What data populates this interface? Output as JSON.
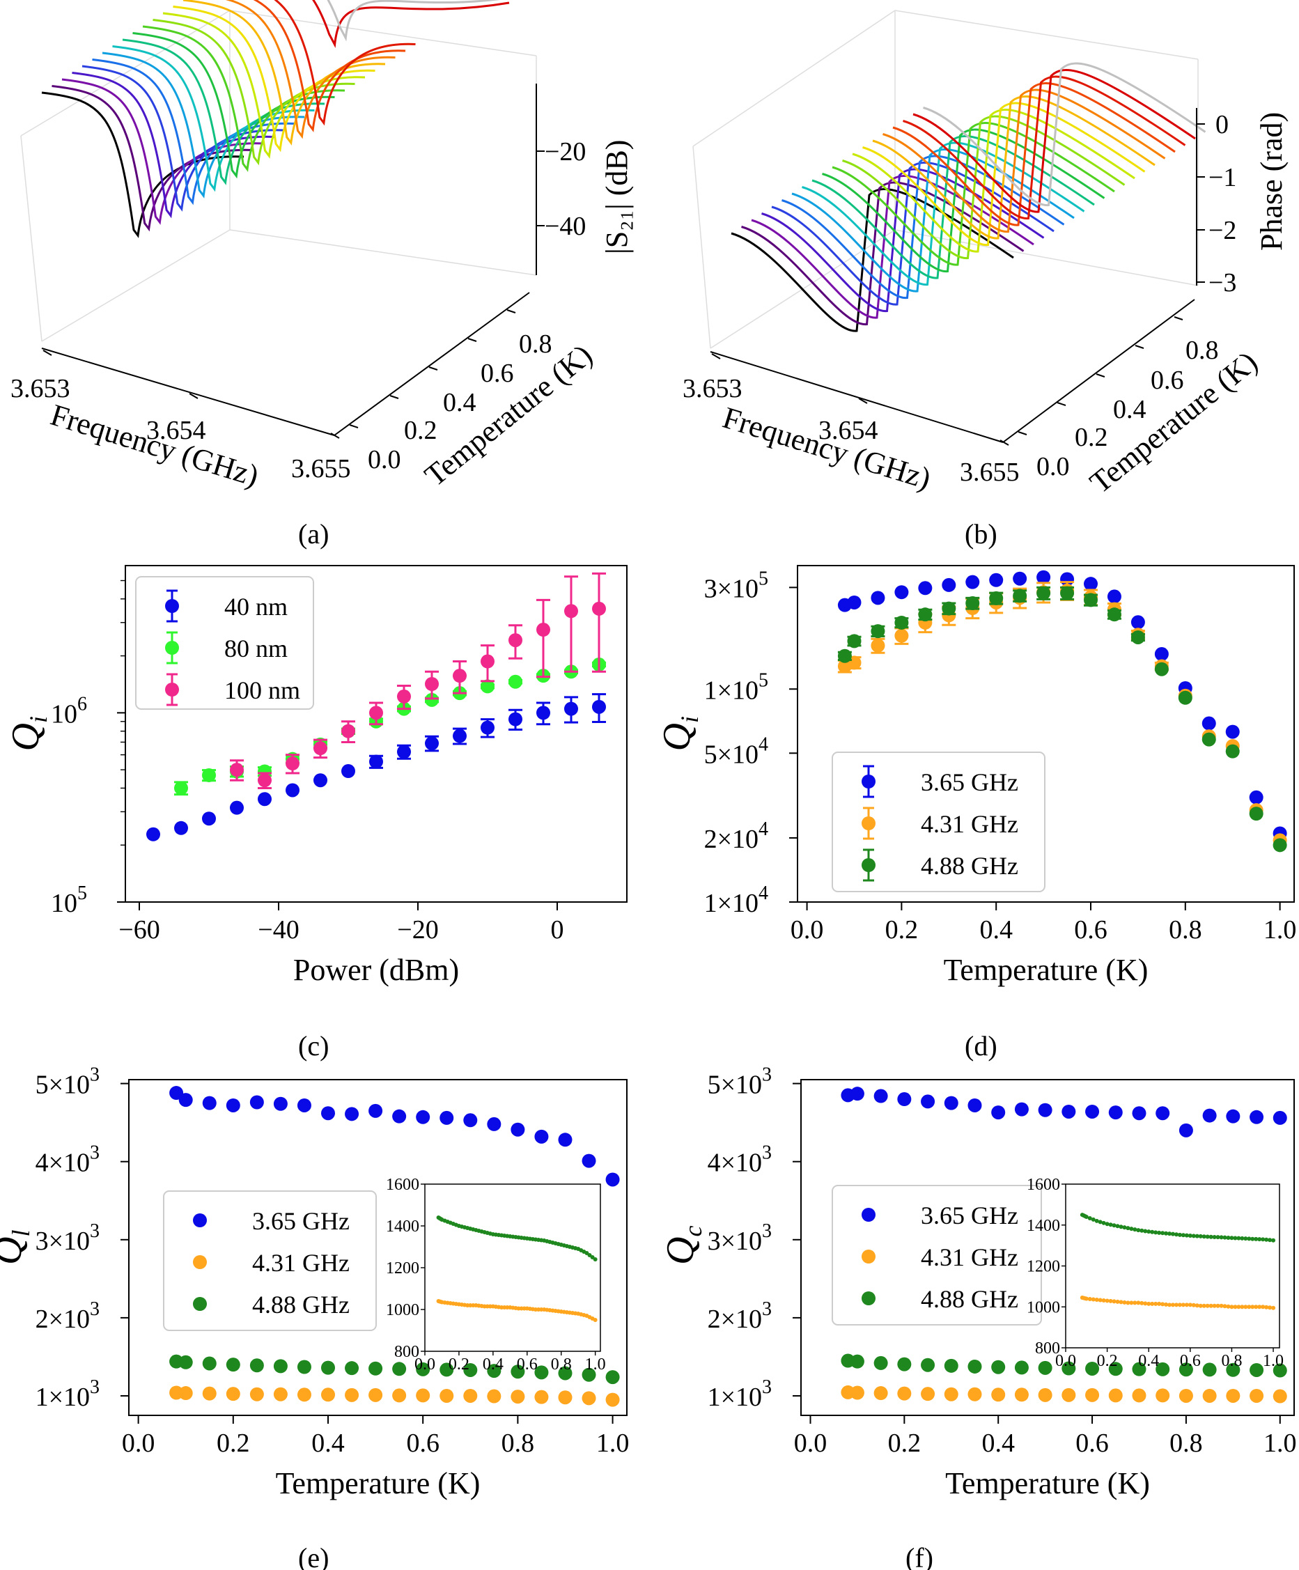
{
  "captions": [
    "(a)",
    "(b)",
    "(c)",
    "(d)",
    "(e)",
    "(f)"
  ],
  "panel_a": {
    "x_label": "Frequency (GHz)",
    "x_ticks": [
      "3.653",
      "3.654",
      "3.655"
    ],
    "y_label": "Temperature (K)",
    "y_ticks": [
      "0.0",
      "0.2",
      "0.4",
      "0.6",
      "0.8"
    ],
    "z_label": "|S₂₁| (dB)",
    "z_ticks": [
      "−20",
      "−40"
    ]
  },
  "panel_b": {
    "x_label": "Frequency (GHz)",
    "x_ticks": [
      "3.653",
      "3.654",
      "3.655"
    ],
    "y_label": "Temperature (K)",
    "y_ticks": [
      "0.0",
      "0.2",
      "0.4",
      "0.6",
      "0.8"
    ],
    "z_label": "Phase (rad)",
    "z_ticks": [
      "0",
      "−1",
      "−2",
      "−3"
    ]
  },
  "colors": {
    "c40": "#0a0ae6",
    "c80": "#2ef52e",
    "c100": "#f0288c",
    "f365": "#0a0ae6",
    "f431": "#ffa51e",
    "f488": "#1e871e"
  },
  "chart_data": [
    {
      "id": "c",
      "type": "scatter",
      "log_y": true,
      "xlabel": "Power (dBm)",
      "ylabel": "Q_i",
      "xlim": [
        -62,
        10
      ],
      "ylim": [
        100000,
        6000000
      ],
      "x_ticks": [
        -60,
        -40,
        -20,
        0
      ],
      "x_tick_labels": [
        "−60",
        "−40",
        "−20",
        "0"
      ],
      "y_tick_labels": [
        "10",
        "10"
      ],
      "y_tick_exponents": [
        "5",
        "6"
      ],
      "series": [
        {
          "name": "40 nm",
          "color": "#0a0ae6",
          "x": [
            -58,
            -54,
            -50,
            -46,
            -42,
            -38,
            -34,
            -30,
            -26,
            -22,
            -18,
            -14,
            -10,
            -6,
            -2,
            2,
            6
          ],
          "y": [
            228000,
            246000,
            276000,
            315000,
            350000,
            390000,
            440000,
            492000,
            552000,
            622000,
            690000,
            755000,
            835000,
            925000,
            1000000,
            1050000,
            1075000
          ],
          "err": [
            0,
            0,
            0,
            0,
            0,
            0,
            0,
            0,
            40000,
            50000,
            60000,
            70000,
            90000,
            110000,
            130000,
            160000,
            180000
          ]
        },
        {
          "name": "80 nm",
          "color": "#2ef52e",
          "x": [
            -54,
            -50,
            -46,
            -42,
            -38,
            -34,
            -30,
            -26,
            -22,
            -18,
            -14,
            -10,
            -6,
            -2,
            2,
            6
          ],
          "y": [
            400000,
            468000,
            490000,
            490000,
            570000,
            680000,
            800000,
            900000,
            1050000,
            1170000,
            1270000,
            1380000,
            1460000,
            1570000,
            1650000,
            1800000
          ],
          "err": [
            30000,
            30000,
            30000,
            25000,
            25000,
            25000,
            25000,
            30000,
            30000,
            30000,
            30000,
            30000,
            30000,
            30000,
            30000,
            40000
          ]
        },
        {
          "name": "100 nm",
          "color": "#f0288c",
          "x": [
            -46,
            -42,
            -38,
            -34,
            -30,
            -26,
            -22,
            -18,
            -14,
            -10,
            -6,
            -2,
            2,
            6
          ],
          "y": [
            500000,
            440000,
            540000,
            650000,
            800000,
            1000000,
            1220000,
            1420000,
            1570000,
            1870000,
            2420000,
            2750000,
            3450000,
            3550000
          ],
          "err": [
            60000,
            40000,
            60000,
            70000,
            100000,
            130000,
            170000,
            230000,
            300000,
            400000,
            480000,
            1200000,
            1800000,
            1900000
          ]
        }
      ],
      "legend": "top-left"
    },
    {
      "id": "d",
      "type": "scatter",
      "log_y": true,
      "xlabel": "Temperature (K)",
      "ylabel": "Q_i",
      "xlim": [
        -0.02,
        1.03
      ],
      "ylim": [
        10000,
        380000
      ],
      "x_ticks": [
        0.0,
        0.2,
        0.4,
        0.6,
        0.8,
        1.0
      ],
      "x_tick_labels": [
        "0.0",
        "0.2",
        "0.4",
        "0.6",
        "0.8",
        "1.0"
      ],
      "y_tick_values": [
        10000,
        20000,
        50000,
        100000,
        300000
      ],
      "y_tick_labels": [
        "1×10",
        "2×10",
        "5×10",
        "1×10",
        "3×10"
      ],
      "y_tick_exponents": [
        "4",
        "4",
        "4",
        "5",
        "5"
      ],
      "series": [
        {
          "name": "3.65 GHz",
          "color": "#0a0ae6",
          "x": [
            0.08,
            0.1,
            0.15,
            0.2,
            0.25,
            0.3,
            0.35,
            0.4,
            0.45,
            0.5,
            0.55,
            0.6,
            0.65,
            0.7,
            0.75,
            0.8,
            0.85,
            0.9,
            0.95,
            1.0
          ],
          "y": [
            248000,
            255000,
            268000,
            285000,
            298000,
            308000,
            318000,
            325000,
            330000,
            335000,
            328000,
            312000,
            272000,
            206000,
            146000,
            101000,
            69000,
            63000,
            31000,
            21000
          ],
          "err": [
            0,
            0,
            0,
            0,
            0,
            0,
            0,
            0,
            0,
            0,
            0,
            0,
            0,
            0,
            0,
            0,
            0,
            0,
            0,
            0
          ]
        },
        {
          "name": "4.31 GHz",
          "color": "#ffa51e",
          "x": [
            0.08,
            0.1,
            0.15,
            0.2,
            0.25,
            0.3,
            0.35,
            0.4,
            0.45,
            0.5,
            0.55,
            0.6,
            0.65,
            0.7,
            0.75,
            0.8,
            0.85,
            0.9,
            0.95,
            1.0
          ],
          "y": [
            128000,
            133000,
            160000,
            178000,
            205000,
            222000,
            240000,
            255000,
            268000,
            285000,
            290000,
            270000,
            237000,
            180000,
            128000,
            93000,
            60000,
            54000,
            27000,
            19500
          ],
          "err": [
            8000,
            8000,
            12000,
            15000,
            20000,
            22000,
            25000,
            27000,
            28000,
            30000,
            28000,
            22000,
            15000,
            8000,
            5000,
            0,
            0,
            0,
            0,
            0
          ]
        },
        {
          "name": "4.88 GHz",
          "color": "#1e871e",
          "x": [
            0.08,
            0.1,
            0.15,
            0.2,
            0.25,
            0.3,
            0.35,
            0.4,
            0.45,
            0.5,
            0.55,
            0.6,
            0.65,
            0.7,
            0.75,
            0.8,
            0.85,
            0.9,
            0.95,
            1.0
          ],
          "y": [
            143000,
            168000,
            187000,
            205000,
            224000,
            239000,
            253000,
            267000,
            274000,
            282000,
            282000,
            262000,
            224000,
            175000,
            124000,
            91000,
            58000,
            51000,
            26000,
            18500
          ],
          "err": [
            6000,
            8000,
            10000,
            10000,
            12000,
            14000,
            15000,
            16000,
            16000,
            18000,
            18000,
            15000,
            10000,
            6000,
            0,
            0,
            0,
            0,
            0,
            0
          ]
        }
      ],
      "legend": "bottom-left"
    },
    {
      "id": "e",
      "type": "scatter",
      "log_y": false,
      "xlabel": "Temperature (K)",
      "ylabel": "Q_l",
      "xlim": [
        -0.02,
        1.03
      ],
      "ylim": [
        750,
        5050
      ],
      "x_ticks": [
        0.0,
        0.2,
        0.4,
        0.6,
        0.8,
        1.0
      ],
      "x_tick_labels": [
        "0.0",
        "0.2",
        "0.4",
        "0.6",
        "0.8",
        "1.0"
      ],
      "y_tick_values": [
        1000,
        2000,
        3000,
        4000,
        5000
      ],
      "y_tick_labels": [
        "1×10",
        "2×10",
        "3×10",
        "4×10",
        "5×10"
      ],
      "y_tick_exponents": [
        "3",
        "3",
        "3",
        "3",
        "3"
      ],
      "series": [
        {
          "name": "3.65 GHz",
          "color": "#0a0ae6",
          "x": [
            0.08,
            0.1,
            0.15,
            0.2,
            0.25,
            0.3,
            0.35,
            0.4,
            0.45,
            0.5,
            0.55,
            0.6,
            0.65,
            0.7,
            0.75,
            0.8,
            0.85,
            0.9,
            0.95,
            1.0
          ],
          "y": [
            4880,
            4790,
            4750,
            4720,
            4760,
            4740,
            4720,
            4620,
            4610,
            4650,
            4580,
            4570,
            4560,
            4530,
            4480,
            4410,
            4320,
            4280,
            4010,
            3770
          ]
        },
        {
          "name": "4.31 GHz",
          "color": "#ffa51e",
          "x": [
            0.08,
            0.1,
            0.15,
            0.2,
            0.25,
            0.3,
            0.35,
            0.4,
            0.45,
            0.5,
            0.55,
            0.6,
            0.65,
            0.7,
            0.75,
            0.8,
            0.85,
            0.9,
            0.95,
            1.0
          ],
          "y": [
            1040,
            1035,
            1030,
            1025,
            1020,
            1020,
            1015,
            1015,
            1010,
            1010,
            1005,
            1005,
            1000,
            1000,
            995,
            990,
            985,
            980,
            970,
            950
          ]
        },
        {
          "name": "4.88 GHz",
          "color": "#1e871e",
          "x": [
            0.08,
            0.1,
            0.15,
            0.2,
            0.25,
            0.3,
            0.35,
            0.4,
            0.45,
            0.5,
            0.55,
            0.6,
            0.65,
            0.7,
            0.75,
            0.8,
            0.85,
            0.9,
            0.95,
            1.0
          ],
          "y": [
            1440,
            1430,
            1415,
            1400,
            1390,
            1380,
            1370,
            1360,
            1355,
            1350,
            1345,
            1340,
            1335,
            1330,
            1320,
            1310,
            1300,
            1290,
            1270,
            1240
          ]
        }
      ],
      "legend": "center-left",
      "inset": {
        "xlim": [
          0.0,
          1.03
        ],
        "ylim": [
          800,
          1600
        ],
        "x_tick_labels": [
          "0.0",
          "0.2",
          "0.4",
          "0.6",
          "0.8",
          "1.0"
        ],
        "y_tick_labels": [
          "800",
          "1000",
          "1200",
          "1400",
          "1600"
        ]
      }
    },
    {
      "id": "f",
      "type": "scatter",
      "log_y": false,
      "xlabel": "Temperature (K)",
      "ylabel": "Q_c",
      "xlim": [
        -0.02,
        1.03
      ],
      "ylim": [
        750,
        5050
      ],
      "x_ticks": [
        0.0,
        0.2,
        0.4,
        0.6,
        0.8,
        1.0
      ],
      "x_tick_labels": [
        "0.0",
        "0.2",
        "0.4",
        "0.6",
        "0.8",
        "1.0"
      ],
      "y_tick_values": [
        1000,
        2000,
        3000,
        4000,
        5000
      ],
      "y_tick_labels": [
        "1×10",
        "2×10",
        "3×10",
        "4×10",
        "5×10"
      ],
      "y_tick_exponents": [
        "3",
        "3",
        "3",
        "3",
        "3"
      ],
      "series": [
        {
          "name": "3.65 GHz",
          "color": "#0a0ae6",
          "x": [
            0.08,
            0.1,
            0.15,
            0.2,
            0.25,
            0.3,
            0.35,
            0.4,
            0.45,
            0.5,
            0.55,
            0.6,
            0.65,
            0.7,
            0.75,
            0.8,
            0.85,
            0.9,
            0.95,
            1.0
          ],
          "y": [
            4850,
            4870,
            4840,
            4800,
            4770,
            4750,
            4720,
            4630,
            4670,
            4660,
            4640,
            4640,
            4630,
            4620,
            4620,
            4400,
            4590,
            4580,
            4570,
            4560
          ]
        },
        {
          "name": "4.31 GHz",
          "color": "#ffa51e",
          "x": [
            0.08,
            0.1,
            0.15,
            0.2,
            0.25,
            0.3,
            0.35,
            0.4,
            0.45,
            0.5,
            0.55,
            0.6,
            0.65,
            0.7,
            0.75,
            0.8,
            0.85,
            0.9,
            0.95,
            1.0
          ],
          "y": [
            1045,
            1040,
            1035,
            1030,
            1025,
            1020,
            1020,
            1015,
            1015,
            1010,
            1010,
            1010,
            1005,
            1005,
            1005,
            1000,
            1000,
            1000,
            1000,
            995
          ]
        },
        {
          "name": "4.88 GHz",
          "color": "#1e871e",
          "x": [
            0.08,
            0.1,
            0.15,
            0.2,
            0.25,
            0.3,
            0.35,
            0.4,
            0.45,
            0.5,
            0.55,
            0.6,
            0.65,
            0.7,
            0.75,
            0.8,
            0.85,
            0.9,
            0.95,
            1.0
          ],
          "y": [
            1450,
            1440,
            1420,
            1405,
            1395,
            1385,
            1375,
            1368,
            1362,
            1358,
            1352,
            1348,
            1345,
            1342,
            1340,
            1337,
            1335,
            1332,
            1330,
            1325
          ]
        }
      ],
      "legend": "center-left",
      "inset": {
        "xlim": [
          0.0,
          1.03
        ],
        "ylim": [
          800,
          1600
        ],
        "x_tick_labels": [
          "0.0",
          "0.2",
          "0.4",
          "0.6",
          "0.8",
          "1.0"
        ],
        "y_tick_labels": [
          "800",
          "1000",
          "1200",
          "1400",
          "1600"
        ]
      }
    }
  ]
}
